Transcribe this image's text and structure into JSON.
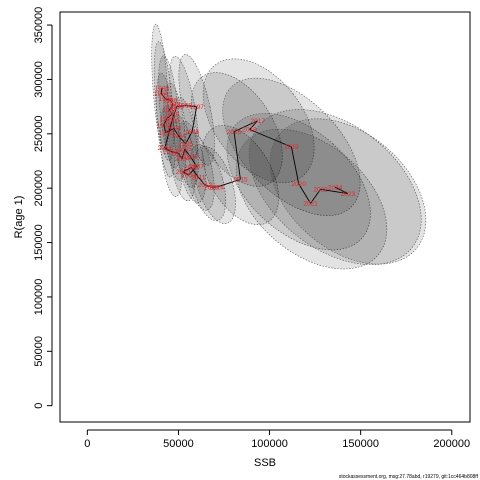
{
  "footer": "stockassessment.org, msg:27.78abd, r19279, git:1cc464b808ff",
  "colors": {
    "ellipse_fill": "#000000",
    "ellipse_stroke": "#555555",
    "label": "#e8262a",
    "line": "#000000"
  },
  "chart_data": {
    "type": "scatter",
    "xlabel": "SSB",
    "ylabel": "R(age 1)",
    "xlim": [
      -15000,
      210000
    ],
    "ylim": [
      -15000,
      362000
    ],
    "xticks": [
      0,
      50000,
      100000,
      150000,
      200000
    ],
    "yticks": [
      0,
      50000,
      100000,
      150000,
      200000,
      250000,
      300000,
      350000
    ],
    "xtick_labels": [
      "0",
      "50000",
      "100000",
      "150000",
      "200000"
    ],
    "ytick_labels": [
      "0",
      "50000",
      "100000",
      "150000",
      "200000",
      "250000",
      "300000",
      "350000"
    ],
    "connected": true,
    "confidence_ellipses": true,
    "points": [
      {
        "year": "1983",
        "ssb": 41000,
        "r": 292000
      },
      {
        "year": "1984",
        "ssb": 40500,
        "r": 287000
      },
      {
        "year": "1985",
        "ssb": 43000,
        "r": 282000
      },
      {
        "year": "1986",
        "ssb": 45500,
        "r": 281000
      },
      {
        "year": "1987",
        "ssb": 47000,
        "r": 277000
      },
      {
        "year": "1988",
        "ssb": 45000,
        "r": 272000
      },
      {
        "year": "1989",
        "ssb": 46500,
        "r": 268000
      },
      {
        "year": "1990",
        "ssb": 43500,
        "r": 264000
      },
      {
        "year": "1991",
        "ssb": 42000,
        "r": 258000
      },
      {
        "year": "1992",
        "ssb": 43000,
        "r": 251000
      },
      {
        "year": "1993",
        "ssb": 47500,
        "r": 255000
      },
      {
        "year": "1994",
        "ssb": 50000,
        "r": 248000
      },
      {
        "year": "1995",
        "ssb": 54000,
        "r": 241000
      },
      {
        "year": "1996",
        "ssb": 57500,
        "r": 252000
      },
      {
        "year": "1997",
        "ssb": 60000,
        "r": 275000
      },
      {
        "year": "1998",
        "ssb": 53500,
        "r": 276000
      },
      {
        "year": "1999",
        "ssb": 49000,
        "r": 275000
      },
      {
        "year": "2000",
        "ssb": 46500,
        "r": 262000
      },
      {
        "year": "2001",
        "ssb": 42500,
        "r": 237000
      },
      {
        "year": "2002",
        "ssb": 45500,
        "r": 234000
      },
      {
        "year": "2003",
        "ssb": 50000,
        "r": 232000
      },
      {
        "year": "2004",
        "ssb": 52000,
        "r": 227000
      },
      {
        "year": "2005",
        "ssb": 53500,
        "r": 236000
      },
      {
        "year": "2006",
        "ssb": 56500,
        "r": 229000
      },
      {
        "year": "2007",
        "ssb": 60000,
        "r": 220000
      },
      {
        "year": "2008",
        "ssb": 55500,
        "r": 212000
      },
      {
        "year": "2009",
        "ssb": 52500,
        "r": 215000
      },
      {
        "year": "2010",
        "ssb": 57000,
        "r": 219000
      },
      {
        "year": "2011",
        "ssb": 61000,
        "r": 210000
      },
      {
        "year": "2012",
        "ssb": 64500,
        "r": 203000
      },
      {
        "year": "2013",
        "ssb": 68000,
        "r": 201000
      },
      {
        "year": "2014",
        "ssb": 71000,
        "r": 201000
      },
      {
        "year": "2015",
        "ssb": 84000,
        "r": 208000
      },
      {
        "year": "2016",
        "ssb": 80500,
        "r": 252000
      },
      {
        "year": "2017",
        "ssb": 93500,
        "r": 262000
      },
      {
        "year": "2018",
        "ssb": 89000,
        "r": 254000
      },
      {
        "year": "2019",
        "ssb": 112000,
        "r": 238000
      },
      {
        "year": "2020",
        "ssb": 116000,
        "r": 204000
      },
      {
        "year": "2021",
        "ssb": 122500,
        "r": 186000
      },
      {
        "year": "2022",
        "ssb": 128000,
        "r": 199000
      },
      {
        "year": "2023",
        "ssb": 143000,
        "r": 195000
      },
      {
        "year": "2024",
        "ssb": 136000,
        "r": 201000
      }
    ],
    "ellipses": [
      {
        "x": 40000,
        "y": 293000,
        "rx": 4000,
        "ry": 58000,
        "angle": -4
      },
      {
        "x": 42000,
        "y": 280000,
        "rx": 4500,
        "ry": 55000,
        "angle": -5
      },
      {
        "x": 45000,
        "y": 270000,
        "rx": 5000,
        "ry": 52000,
        "angle": -6
      },
      {
        "x": 43000,
        "y": 258000,
        "rx": 4500,
        "ry": 48000,
        "angle": -5
      },
      {
        "x": 48000,
        "y": 252000,
        "rx": 5500,
        "ry": 45000,
        "angle": -6
      },
      {
        "x": 54000,
        "y": 242000,
        "rx": 6000,
        "ry": 42000,
        "angle": -8
      },
      {
        "x": 60000,
        "y": 272000,
        "rx": 7500,
        "ry": 52000,
        "angle": -12
      },
      {
        "x": 53000,
        "y": 274000,
        "rx": 6000,
        "ry": 48000,
        "angle": -10
      },
      {
        "x": 46000,
        "y": 234000,
        "rx": 5500,
        "ry": 42000,
        "angle": -6
      },
      {
        "x": 52000,
        "y": 228000,
        "rx": 6500,
        "ry": 40000,
        "angle": -8
      },
      {
        "x": 57000,
        "y": 224000,
        "rx": 7000,
        "ry": 38000,
        "angle": -10
      },
      {
        "x": 61000,
        "y": 216000,
        "rx": 7500,
        "ry": 37000,
        "angle": -12
      },
      {
        "x": 66000,
        "y": 205000,
        "rx": 8500,
        "ry": 36000,
        "angle": -15
      },
      {
        "x": 70000,
        "y": 203000,
        "rx": 9500,
        "ry": 37000,
        "angle": -18
      },
      {
        "x": 84000,
        "y": 212000,
        "rx": 17000,
        "ry": 50000,
        "angle": -30
      },
      {
        "x": 82000,
        "y": 254000,
        "rx": 20000,
        "ry": 58000,
        "angle": -32
      },
      {
        "x": 94000,
        "y": 262000,
        "rx": 24000,
        "ry": 65000,
        "angle": -38
      },
      {
        "x": 112000,
        "y": 238000,
        "rx": 26000,
        "ry": 78000,
        "angle": -45
      },
      {
        "x": 116000,
        "y": 206000,
        "rx": 28000,
        "ry": 78000,
        "angle": -48
      },
      {
        "x": 123000,
        "y": 190000,
        "rx": 30000,
        "ry": 80000,
        "angle": -50
      },
      {
        "x": 136000,
        "y": 201000,
        "rx": 34000,
        "ry": 90000,
        "angle": -52
      },
      {
        "x": 143000,
        "y": 197000,
        "rx": 32000,
        "ry": 82000,
        "angle": -50
      }
    ]
  }
}
